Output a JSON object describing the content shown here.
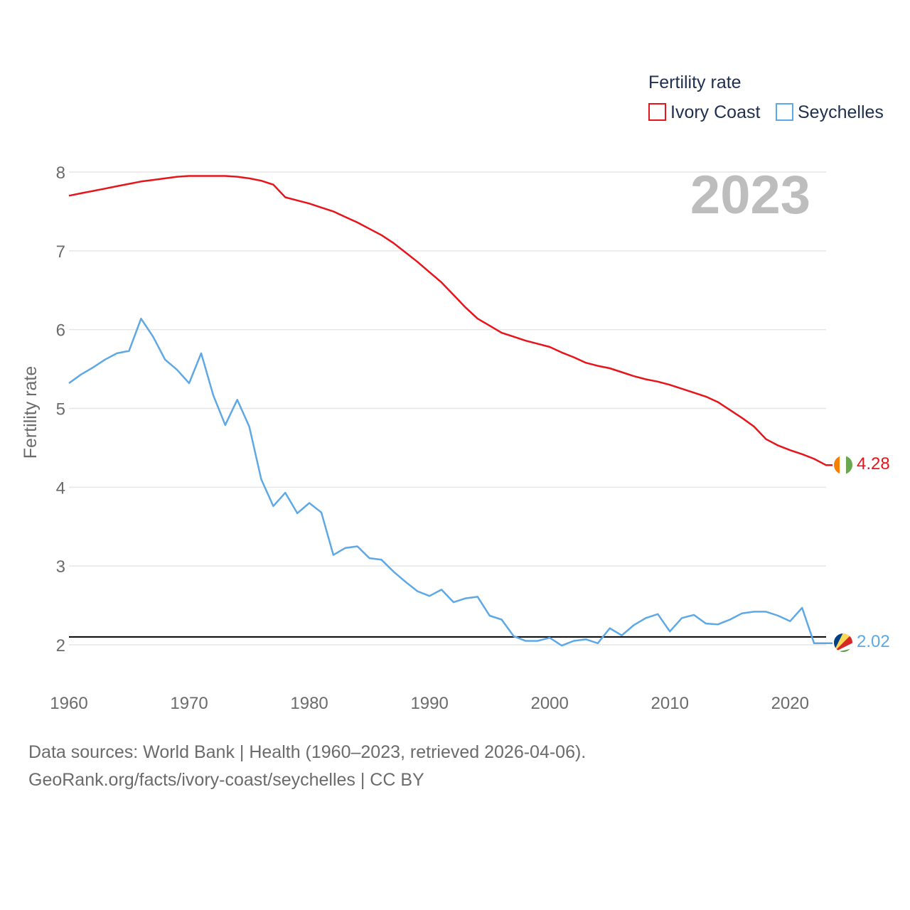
{
  "chart_data": {
    "type": "line",
    "year_label": "2023",
    "ylabel": "Fertility rate",
    "xlabel": "",
    "xlim": [
      1960,
      2023
    ],
    "ylim": [
      1.5,
      8.2
    ],
    "xticks": [
      1960,
      1970,
      1980,
      1990,
      2000,
      2010,
      2020
    ],
    "yticks": [
      2,
      3,
      4,
      5,
      6,
      7,
      8
    ],
    "reference_line": 2.1,
    "legend": {
      "title": "Fertility rate",
      "position": "top-right"
    },
    "series": [
      {
        "name": "Ivory Coast",
        "color": "#e8141b",
        "end_label": "4.28",
        "x": [
          1960,
          1961,
          1962,
          1963,
          1964,
          1965,
          1966,
          1967,
          1968,
          1969,
          1970,
          1971,
          1972,
          1973,
          1974,
          1975,
          1976,
          1977,
          1978,
          1979,
          1980,
          1981,
          1982,
          1983,
          1984,
          1985,
          1986,
          1987,
          1988,
          1989,
          1990,
          1991,
          1992,
          1993,
          1994,
          1995,
          1996,
          1997,
          1998,
          1999,
          2000,
          2001,
          2002,
          2003,
          2004,
          2005,
          2006,
          2007,
          2008,
          2009,
          2010,
          2011,
          2012,
          2013,
          2014,
          2015,
          2016,
          2017,
          2018,
          2019,
          2020,
          2021,
          2022,
          2023
        ],
        "values": [
          7.7,
          7.73,
          7.76,
          7.79,
          7.82,
          7.85,
          7.88,
          7.9,
          7.92,
          7.94,
          7.95,
          7.95,
          7.95,
          7.95,
          7.94,
          7.92,
          7.89,
          7.84,
          7.68,
          7.64,
          7.6,
          7.55,
          7.5,
          7.43,
          7.36,
          7.28,
          7.2,
          7.1,
          6.98,
          6.86,
          6.73,
          6.6,
          6.44,
          6.28,
          6.14,
          6.05,
          5.96,
          5.91,
          5.86,
          5.82,
          5.78,
          5.71,
          5.65,
          5.58,
          5.54,
          5.51,
          5.46,
          5.41,
          5.37,
          5.34,
          5.3,
          5.25,
          5.2,
          5.15,
          5.08,
          4.98,
          4.88,
          4.77,
          4.61,
          4.53,
          4.47,
          4.42,
          4.36,
          4.28
        ]
      },
      {
        "name": "Seychelles",
        "color": "#5ea8e6",
        "end_label": "2.02",
        "x": [
          1960,
          1961,
          1962,
          1963,
          1964,
          1965,
          1966,
          1967,
          1968,
          1969,
          1970,
          1971,
          1972,
          1973,
          1974,
          1975,
          1976,
          1977,
          1978,
          1979,
          1980,
          1981,
          1982,
          1983,
          1984,
          1985,
          1986,
          1987,
          1988,
          1989,
          1990,
          1991,
          1992,
          1993,
          1994,
          1995,
          1996,
          1997,
          1998,
          1999,
          2000,
          2001,
          2002,
          2003,
          2004,
          2005,
          2006,
          2007,
          2008,
          2009,
          2010,
          2011,
          2012,
          2013,
          2014,
          2015,
          2016,
          2017,
          2018,
          2019,
          2020,
          2021,
          2022,
          2023
        ],
        "values": [
          5.32,
          5.43,
          5.52,
          5.62,
          5.7,
          5.73,
          6.14,
          5.91,
          5.62,
          5.49,
          5.32,
          5.7,
          5.17,
          4.79,
          5.11,
          4.77,
          4.1,
          3.76,
          3.93,
          3.67,
          3.8,
          3.68,
          3.14,
          3.23,
          3.25,
          3.1,
          3.08,
          2.93,
          2.8,
          2.68,
          2.62,
          2.7,
          2.54,
          2.59,
          2.61,
          2.37,
          2.32,
          2.11,
          2.05,
          2.05,
          2.09,
          1.99,
          2.05,
          2.07,
          2.02,
          2.21,
          2.12,
          2.25,
          2.34,
          2.39,
          2.17,
          2.34,
          2.38,
          2.27,
          2.26,
          2.32,
          2.4,
          2.42,
          2.42,
          2.37,
          2.3,
          2.47,
          2.02,
          2.02
        ]
      }
    ]
  },
  "footer": {
    "sources": "Data sources: World Bank | Health (1960–2023, retrieved 2026-04-06).",
    "link": "GeoRank.org/facts/ivory-coast/seychelles | CC BY"
  }
}
